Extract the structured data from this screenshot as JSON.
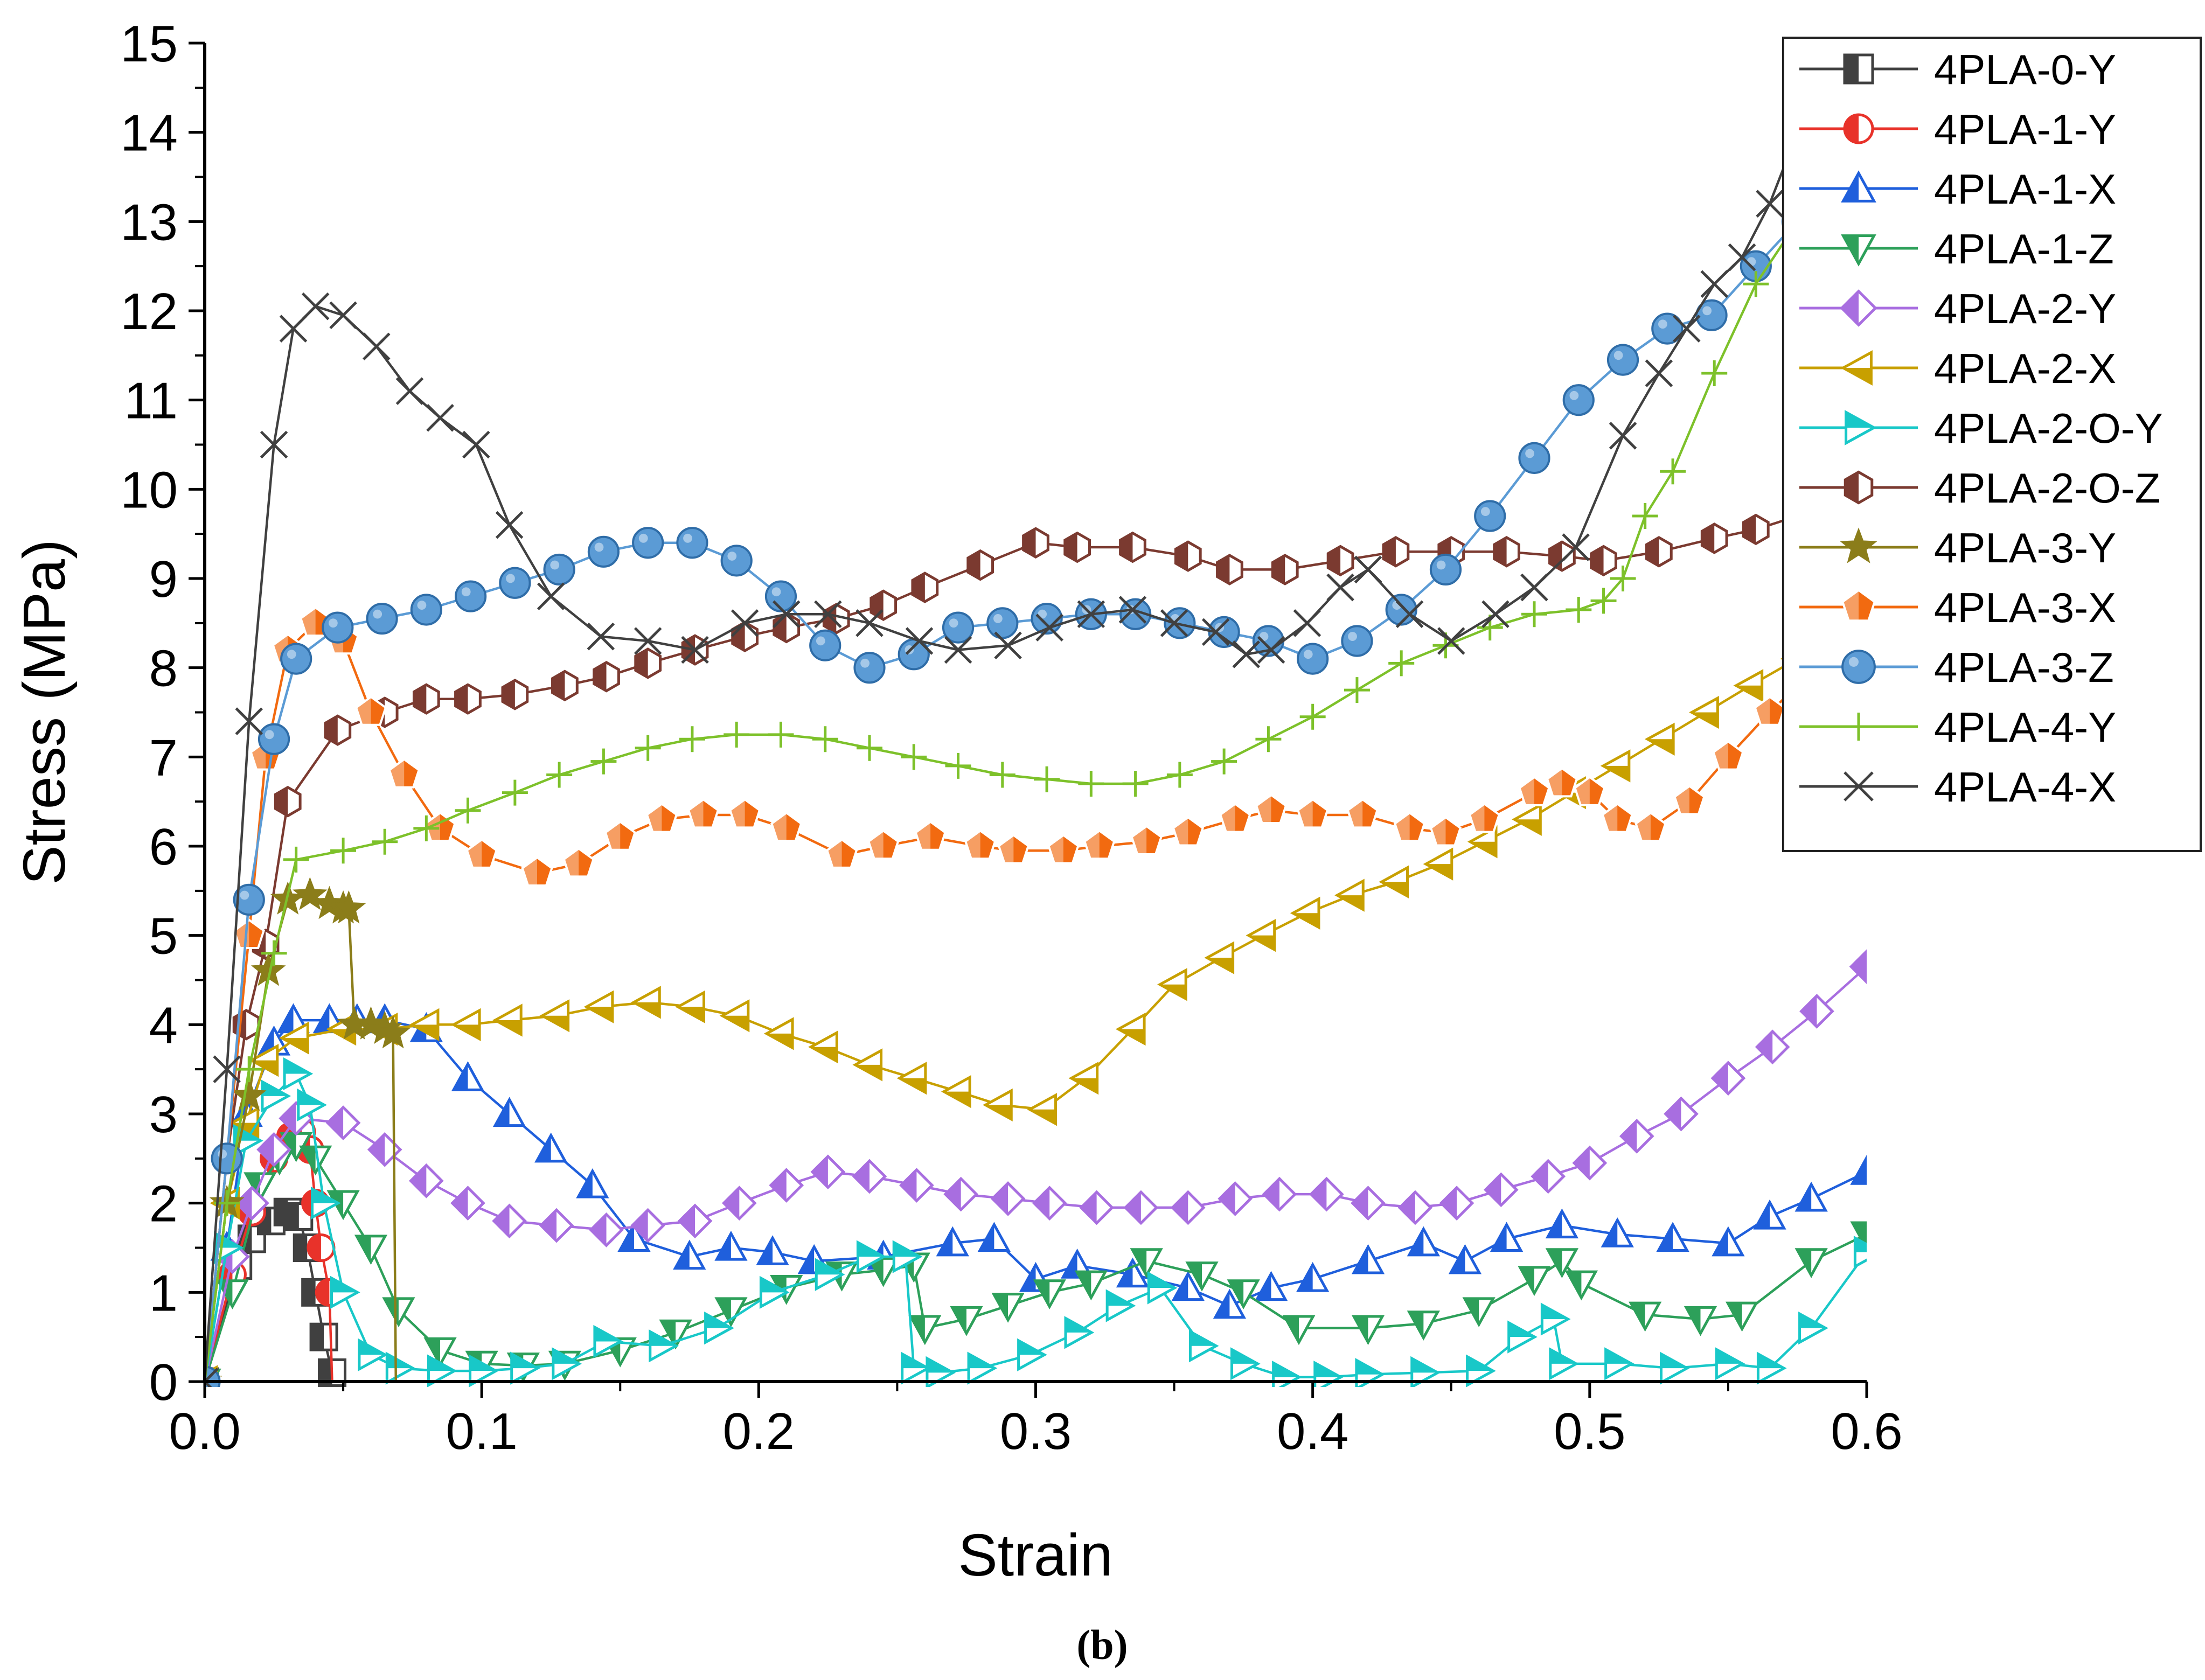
{
  "chart_data": {
    "type": "line",
    "title": "",
    "xlabel": "Strain",
    "ylabel": "Stress (MPa)",
    "xlim": [
      0,
      0.6
    ],
    "ylim": [
      0,
      15
    ],
    "xticks": [
      "0.0",
      "0.1",
      "0.2",
      "0.3",
      "0.4",
      "0.5",
      "0.6"
    ],
    "yticks": [
      "0",
      "1",
      "2",
      "3",
      "4",
      "5",
      "6",
      "7",
      "8",
      "9",
      "10",
      "11",
      "12",
      "13",
      "14",
      "15"
    ],
    "grid": false,
    "legend_position": "top-right",
    "caption": "(b)",
    "series": [
      {
        "name": "4PLA-0-Y",
        "color": "#404040",
        "marker": "half-square",
        "x": [
          0,
          0.012,
          0.017,
          0.024,
          0.03,
          0.034,
          0.037,
          0.04,
          0.043,
          0.046,
          0.047
        ],
        "y": [
          0,
          1.3,
          1.6,
          1.8,
          1.9,
          1.85,
          1.5,
          1.0,
          0.5,
          0.1,
          0
        ]
      },
      {
        "name": "4PLA-1-Y",
        "color": "#e8322a",
        "marker": "half-circle",
        "x": [
          0,
          0.01,
          0.017,
          0.025,
          0.031,
          0.035,
          0.038,
          0.04,
          0.042,
          0.045,
          0.046
        ],
        "y": [
          0,
          1.2,
          1.9,
          2.5,
          2.75,
          2.8,
          2.6,
          2.0,
          1.5,
          1.0,
          0
        ]
      },
      {
        "name": "4PLA-1-X",
        "color": "#1f5fdc",
        "marker": "half-triangle-up",
        "x": [
          0,
          0.008,
          0.015,
          0.025,
          0.032,
          0.045,
          0.055,
          0.065,
          0.08,
          0.095,
          0.11,
          0.125,
          0.14,
          0.155,
          0.175,
          0.19,
          0.205,
          0.22,
          0.245,
          0.27,
          0.285,
          0.3,
          0.315,
          0.335,
          0.355,
          0.37,
          0.385,
          0.4,
          0.42,
          0.44,
          0.455,
          0.47,
          0.49,
          0.51,
          0.53,
          0.55,
          0.565,
          0.58,
          0.6
        ],
        "y": [
          0,
          1.5,
          3.0,
          3.8,
          4.05,
          4.05,
          4.05,
          4.05,
          3.95,
          3.4,
          3.0,
          2.6,
          2.2,
          1.6,
          1.4,
          1.5,
          1.45,
          1.35,
          1.4,
          1.55,
          1.6,
          1.15,
          1.3,
          1.2,
          1.05,
          0.85,
          1.05,
          1.15,
          1.35,
          1.55,
          1.35,
          1.6,
          1.75,
          1.65,
          1.6,
          1.55,
          1.85,
          2.05,
          2.35
        ]
      },
      {
        "name": "4PLA-1-Z",
        "color": "#2da05a",
        "marker": "half-triangle-down",
        "x": [
          0,
          0.01,
          0.02,
          0.027,
          0.033,
          0.04,
          0.05,
          0.06,
          0.07,
          0.085,
          0.1,
          0.115,
          0.13,
          0.15,
          0.17,
          0.19,
          0.21,
          0.23,
          0.245,
          0.256,
          0.26,
          0.275,
          0.29,
          0.305,
          0.32,
          0.34,
          0.36,
          0.375,
          0.395,
          0.42,
          0.44,
          0.46,
          0.48,
          0.49,
          0.497,
          0.52,
          0.54,
          0.555,
          0.58,
          0.6
        ],
        "y": [
          0,
          1.0,
          2.2,
          2.5,
          2.65,
          2.5,
          2.0,
          1.5,
          0.8,
          0.35,
          0.2,
          0.18,
          0.2,
          0.35,
          0.55,
          0.8,
          1.05,
          1.2,
          1.25,
          1.3,
          0.6,
          0.7,
          0.85,
          1.0,
          1.1,
          1.35,
          1.2,
          1.0,
          0.6,
          0.6,
          0.65,
          0.8,
          1.15,
          1.35,
          1.1,
          0.75,
          0.7,
          0.75,
          1.35,
          1.65
        ]
      },
      {
        "name": "4PLA-2-Y",
        "color": "#a86ee0",
        "marker": "half-diamond",
        "x": [
          0,
          0.01,
          0.017,
          0.025,
          0.033,
          0.05,
          0.065,
          0.08,
          0.095,
          0.11,
          0.127,
          0.145,
          0.16,
          0.177,
          0.193,
          0.21,
          0.225,
          0.24,
          0.257,
          0.273,
          0.29,
          0.305,
          0.322,
          0.338,
          0.355,
          0.372,
          0.388,
          0.405,
          0.42,
          0.437,
          0.452,
          0.468,
          0.485,
          0.5,
          0.517,
          0.533,
          0.55,
          0.566,
          0.582,
          0.6
        ],
        "y": [
          0,
          1.4,
          2.0,
          2.6,
          2.95,
          2.9,
          2.6,
          2.25,
          2.0,
          1.8,
          1.75,
          1.7,
          1.75,
          1.8,
          2.0,
          2.2,
          2.35,
          2.3,
          2.2,
          2.1,
          2.05,
          2.0,
          1.95,
          1.95,
          1.95,
          2.05,
          2.1,
          2.1,
          2.0,
          1.95,
          2.0,
          2.15,
          2.3,
          2.45,
          2.75,
          3.0,
          3.4,
          3.75,
          4.15,
          4.65
        ]
      },
      {
        "name": "4PLA-2-X",
        "color": "#c8a000",
        "marker": "half-triangle-left",
        "x": [
          0,
          0.008,
          0.015,
          0.022,
          0.033,
          0.05,
          0.065,
          0.08,
          0.095,
          0.11,
          0.127,
          0.143,
          0.16,
          0.176,
          0.192,
          0.208,
          0.224,
          0.24,
          0.256,
          0.272,
          0.287,
          0.303,
          0.318,
          0.335,
          0.35,
          0.367,
          0.382,
          0.398,
          0.414,
          0.43,
          0.446,
          0.462,
          0.478,
          0.494,
          0.51,
          0.526,
          0.542,
          0.558,
          0.575
        ],
        "y": [
          0,
          2.0,
          2.9,
          3.6,
          3.85,
          3.95,
          3.95,
          4.0,
          4.0,
          4.05,
          4.1,
          4.2,
          4.25,
          4.2,
          4.1,
          3.9,
          3.75,
          3.55,
          3.4,
          3.25,
          3.1,
          3.05,
          3.4,
          3.95,
          4.45,
          4.75,
          5.0,
          5.25,
          5.45,
          5.6,
          5.8,
          6.05,
          6.3,
          6.6,
          6.9,
          7.2,
          7.5,
          7.8,
          8.1
        ]
      },
      {
        "name": "4PLA-2-O-Y",
        "color": "#18c8c8",
        "marker": "half-triangle-right",
        "x": [
          0,
          0.008,
          0.015,
          0.025,
          0.033,
          0.038,
          0.043,
          0.05,
          0.06,
          0.07,
          0.085,
          0.1,
          0.115,
          0.13,
          0.145,
          0.165,
          0.185,
          0.205,
          0.225,
          0.24,
          0.253,
          0.256,
          0.265,
          0.28,
          0.298,
          0.315,
          0.33,
          0.345,
          0.36,
          0.375,
          0.39,
          0.405,
          0.42,
          0.44,
          0.46,
          0.475,
          0.487,
          0.49,
          0.51,
          0.53,
          0.55,
          0.565,
          0.58,
          0.6
        ],
        "y": [
          0,
          1.5,
          2.7,
          3.2,
          3.45,
          3.1,
          2.0,
          1.0,
          0.3,
          0.15,
          0.12,
          0.12,
          0.15,
          0.2,
          0.45,
          0.4,
          0.6,
          1.0,
          1.2,
          1.4,
          1.4,
          0.15,
          0.1,
          0.15,
          0.3,
          0.55,
          0.85,
          1.05,
          0.4,
          0.2,
          0.05,
          0.05,
          0.08,
          0.1,
          0.12,
          0.5,
          0.7,
          0.2,
          0.2,
          0.15,
          0.2,
          0.15,
          0.6,
          1.45
        ]
      },
      {
        "name": "4PLA-2-O-Z",
        "color": "#7b3a30",
        "marker": "half-hexagon",
        "x": [
          0,
          0.008,
          0.015,
          0.022,
          0.03,
          0.048,
          0.065,
          0.08,
          0.095,
          0.112,
          0.13,
          0.145,
          0.16,
          0.177,
          0.195,
          0.21,
          0.228,
          0.245,
          0.26,
          0.28,
          0.3,
          0.315,
          0.335,
          0.355,
          0.37,
          0.39,
          0.41,
          0.43,
          0.45,
          0.47,
          0.49,
          0.505,
          0.525,
          0.545,
          0.56,
          0.58,
          0.6
        ],
        "y": [
          0,
          2.5,
          4.0,
          4.9,
          6.5,
          7.3,
          7.5,
          7.65,
          7.65,
          7.7,
          7.8,
          7.9,
          8.05,
          8.2,
          8.35,
          8.45,
          8.55,
          8.7,
          8.9,
          9.15,
          9.4,
          9.35,
          9.35,
          9.25,
          9.1,
          9.1,
          9.2,
          9.3,
          9.3,
          9.3,
          9.25,
          9.2,
          9.3,
          9.45,
          9.55,
          9.75,
          10.0
        ]
      },
      {
        "name": "4PLA-3-Y",
        "color": "#8b7d1a",
        "marker": "star",
        "x": [
          0,
          0.008,
          0.016,
          0.023,
          0.03,
          0.038,
          0.045,
          0.05,
          0.052,
          0.054,
          0.06,
          0.065,
          0.068,
          0.069
        ],
        "y": [
          0,
          2.0,
          3.2,
          4.6,
          5.4,
          5.45,
          5.35,
          5.3,
          5.3,
          4.0,
          4.0,
          3.95,
          3.9,
          0
        ]
      },
      {
        "name": "4PLA-3-X",
        "color": "#f26a10",
        "marker": "pentagon",
        "x": [
          0,
          0.008,
          0.016,
          0.022,
          0.03,
          0.04,
          0.05,
          0.06,
          0.072,
          0.085,
          0.1,
          0.12,
          0.135,
          0.15,
          0.165,
          0.18,
          0.195,
          0.21,
          0.23,
          0.245,
          0.262,
          0.28,
          0.292,
          0.31,
          0.323,
          0.34,
          0.355,
          0.372,
          0.385,
          0.4,
          0.418,
          0.435,
          0.448,
          0.462,
          0.48,
          0.49,
          0.5,
          0.51,
          0.522,
          0.536,
          0.55,
          0.565,
          0.575
        ],
        "y": [
          0,
          2.5,
          5.0,
          7.0,
          8.2,
          8.5,
          8.3,
          7.5,
          6.8,
          6.2,
          5.9,
          5.7,
          5.8,
          6.1,
          6.3,
          6.35,
          6.35,
          6.2,
          5.9,
          6.0,
          6.1,
          6.0,
          5.95,
          5.95,
          6.0,
          6.05,
          6.15,
          6.3,
          6.4,
          6.35,
          6.35,
          6.2,
          6.15,
          6.3,
          6.6,
          6.7,
          6.6,
          6.3,
          6.2,
          6.5,
          7.0,
          7.5,
          7.8
        ]
      },
      {
        "name": "4PLA-3-Z",
        "color": "#5b9bd5",
        "marker": "circle",
        "x": [
          0,
          0.008,
          0.016,
          0.025,
          0.033,
          0.048,
          0.064,
          0.08,
          0.096,
          0.112,
          0.128,
          0.144,
          0.16,
          0.176,
          0.192,
          0.208,
          0.224,
          0.24,
          0.256,
          0.272,
          0.288,
          0.304,
          0.32,
          0.336,
          0.352,
          0.368,
          0.384,
          0.4,
          0.416,
          0.432,
          0.448,
          0.464,
          0.48,
          0.496,
          0.512,
          0.528,
          0.544,
          0.56,
          0.575
        ],
        "y": [
          0,
          2.5,
          5.4,
          7.2,
          8.1,
          8.45,
          8.55,
          8.65,
          8.8,
          8.95,
          9.1,
          9.3,
          9.4,
          9.4,
          9.2,
          8.8,
          8.25,
          8.0,
          8.15,
          8.45,
          8.5,
          8.55,
          8.6,
          8.6,
          8.5,
          8.4,
          8.3,
          8.1,
          8.3,
          8.65,
          9.1,
          9.7,
          10.35,
          11.0,
          11.45,
          11.8,
          11.95,
          12.5,
          13.0
        ]
      },
      {
        "name": "4PLA-4-Y",
        "color": "#7dc12a",
        "marker": "plus",
        "x": [
          0,
          0.008,
          0.016,
          0.025,
          0.033,
          0.05,
          0.065,
          0.08,
          0.095,
          0.112,
          0.128,
          0.144,
          0.16,
          0.176,
          0.192,
          0.208,
          0.224,
          0.24,
          0.256,
          0.272,
          0.288,
          0.304,
          0.32,
          0.336,
          0.352,
          0.368,
          0.384,
          0.4,
          0.416,
          0.432,
          0.448,
          0.464,
          0.48,
          0.496,
          0.505,
          0.512,
          0.52,
          0.53,
          0.545,
          0.56,
          0.575
        ],
        "y": [
          0,
          2.0,
          3.5,
          4.8,
          5.85,
          5.95,
          6.05,
          6.2,
          6.4,
          6.6,
          6.8,
          6.95,
          7.1,
          7.2,
          7.25,
          7.25,
          7.2,
          7.1,
          7.0,
          6.9,
          6.8,
          6.75,
          6.7,
          6.7,
          6.8,
          6.95,
          7.2,
          7.45,
          7.75,
          8.05,
          8.25,
          8.45,
          8.6,
          8.65,
          8.75,
          9.0,
          9.7,
          10.2,
          11.3,
          12.3,
          13.0
        ]
      },
      {
        "name": "4PLA-4-X",
        "color": "#404040",
        "marker": "x",
        "x": [
          0,
          0.008,
          0.016,
          0.025,
          0.032,
          0.04,
          0.05,
          0.062,
          0.074,
          0.085,
          0.098,
          0.11,
          0.125,
          0.143,
          0.16,
          0.177,
          0.195,
          0.21,
          0.225,
          0.24,
          0.258,
          0.272,
          0.29,
          0.305,
          0.32,
          0.335,
          0.35,
          0.365,
          0.376,
          0.385,
          0.398,
          0.41,
          0.42,
          0.435,
          0.45,
          0.466,
          0.48,
          0.495,
          0.512,
          0.525,
          0.535,
          0.545,
          0.555,
          0.565,
          0.575
        ],
        "y": [
          0,
          3.5,
          7.4,
          10.5,
          11.8,
          12.05,
          11.95,
          11.6,
          11.1,
          10.8,
          10.5,
          9.6,
          8.8,
          8.35,
          8.3,
          8.2,
          8.5,
          8.6,
          8.6,
          8.5,
          8.3,
          8.2,
          8.25,
          8.45,
          8.6,
          8.65,
          8.5,
          8.4,
          8.15,
          8.2,
          8.5,
          8.9,
          9.1,
          8.6,
          8.3,
          8.6,
          8.9,
          9.35,
          10.6,
          11.3,
          11.8,
          12.3,
          12.6,
          13.2,
          14.0
        ]
      }
    ]
  }
}
